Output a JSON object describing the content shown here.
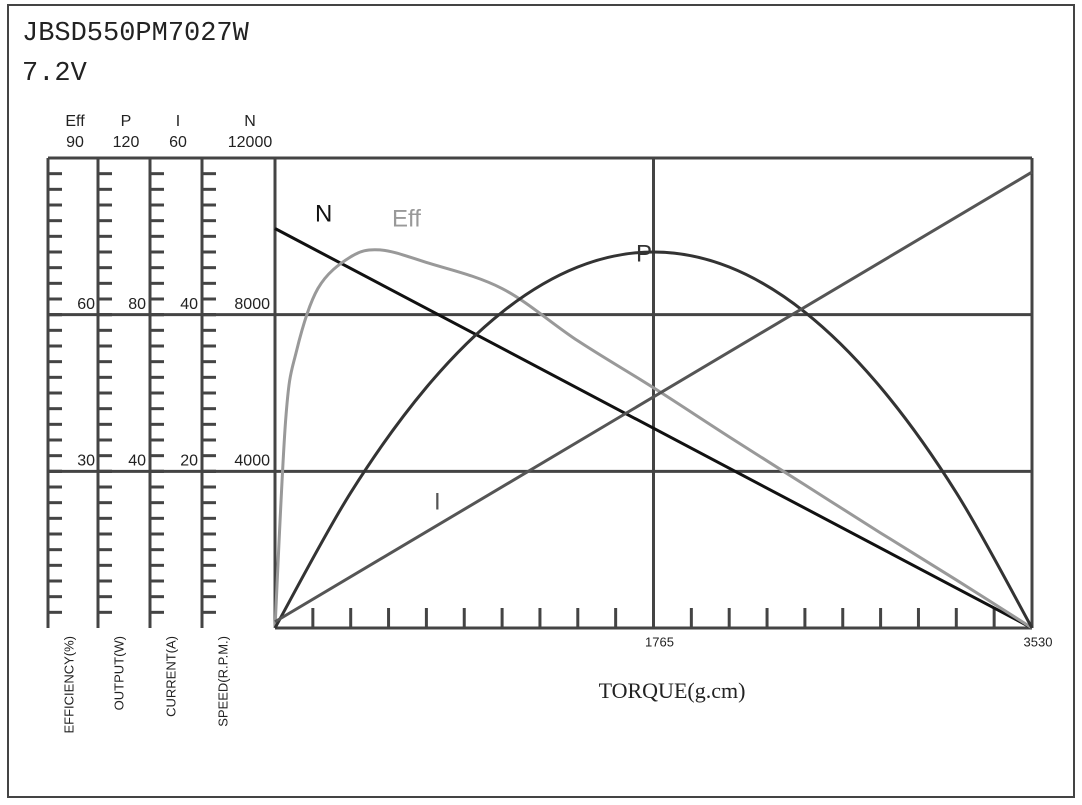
{
  "chart_data": {
    "type": "line",
    "title": "JBSD550PM7027W",
    "subtitle": "7.2V",
    "xlabel": "TORQUE(g.cm)",
    "xlim": [
      0,
      3530
    ],
    "xticks": [
      1765,
      3530
    ],
    "grid": true,
    "y_axes": [
      {
        "name": "Eff",
        "label": "EFFICIENCY(%)",
        "ylim": [
          0,
          90
        ],
        "yticks": [
          30,
          60,
          90
        ]
      },
      {
        "name": "P",
        "label": "OUTPUT(W)",
        "ylim": [
          0,
          120
        ],
        "yticks": [
          40,
          80,
          120
        ]
      },
      {
        "name": "I",
        "label": "CURRENT(A)",
        "ylim": [
          0,
          60
        ],
        "yticks": [
          20,
          40,
          60
        ]
      },
      {
        "name": "N",
        "label": "SPEED(R.P.M.)",
        "ylim": [
          0,
          12000
        ],
        "yticks": [
          4000,
          8000,
          12000
        ]
      }
    ],
    "series": [
      {
        "name": "N",
        "color": "#111111",
        "axis": 3,
        "x": [
          0,
          3530
        ],
        "values": [
          10200,
          0
        ]
      },
      {
        "name": "Eff",
        "color": "#999999",
        "axis": 0,
        "x": [
          0,
          50,
          100,
          200,
          350,
          490,
          706,
          1059,
          1412,
          1765,
          2118,
          2471,
          2824,
          3177,
          3530
        ],
        "values": [
          0,
          40,
          53,
          65,
          71,
          72.4,
          70,
          65,
          55,
          46,
          36.6,
          27.4,
          18.2,
          9.2,
          0
        ]
      },
      {
        "name": "P",
        "color": "#333333",
        "axis": 1,
        "x": [
          0,
          353,
          706,
          1059,
          1412,
          1765,
          2118,
          2471,
          2824,
          3177,
          3530
        ],
        "values": [
          0,
          34.56,
          61.44,
          80.64,
          92.16,
          96,
          92.16,
          80.64,
          61.44,
          34.56,
          0
        ]
      },
      {
        "name": "I",
        "color": "#555555",
        "axis": 2,
        "x": [
          0,
          3530
        ],
        "values": [
          0.8,
          58.2
        ]
      }
    ]
  }
}
